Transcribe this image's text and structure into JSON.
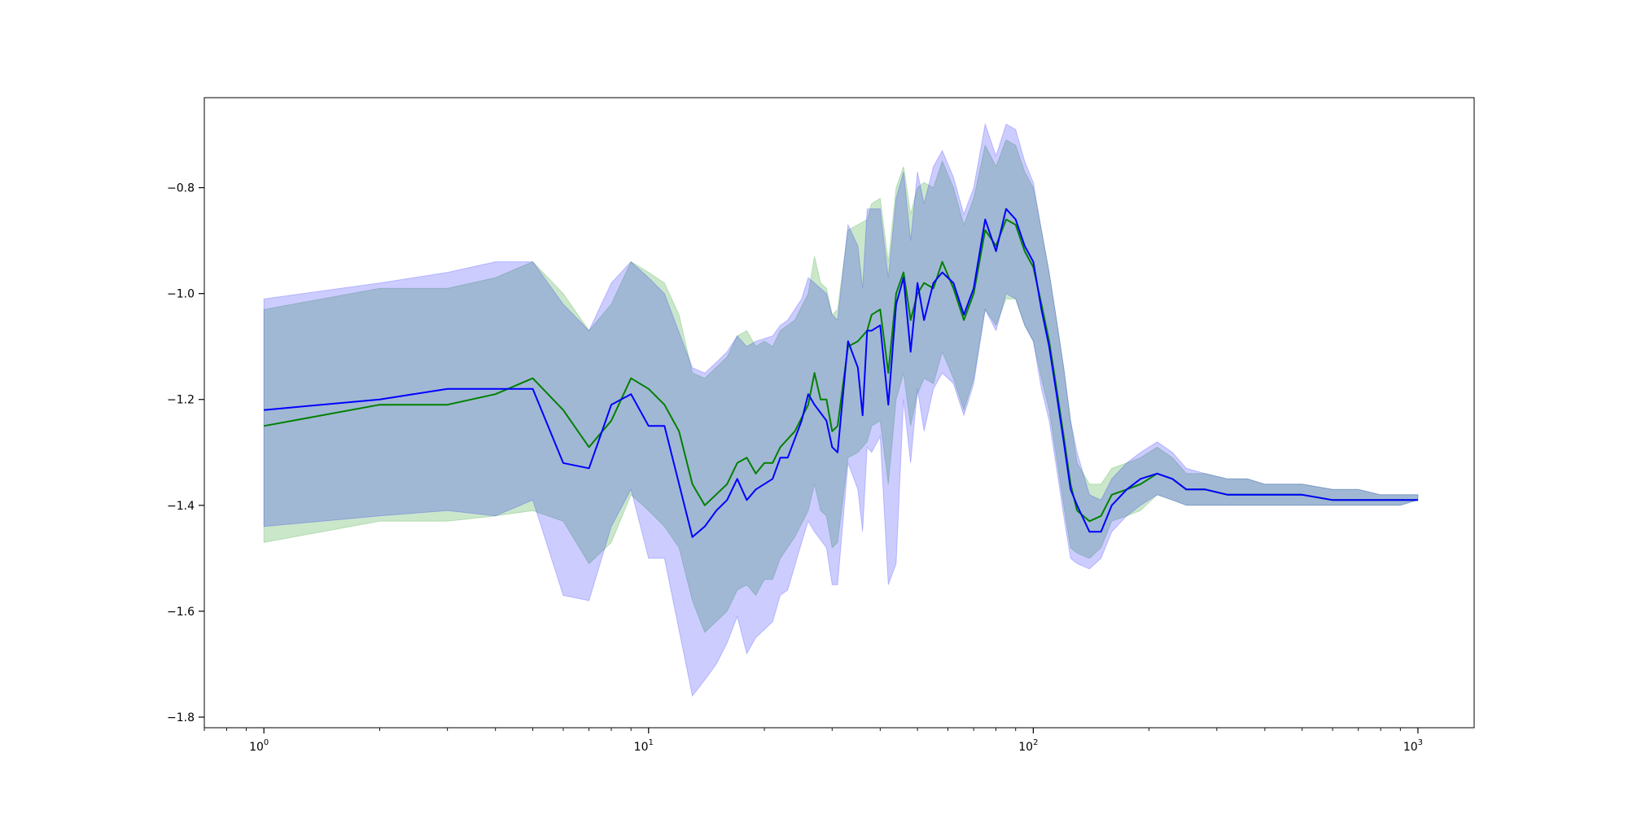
{
  "chart_data": {
    "type": "line",
    "title": "",
    "xlabel": "",
    "ylabel": "",
    "x_scale": "log",
    "xlim": [
      0.7,
      1400
    ],
    "ylim": [
      -1.82,
      -0.63
    ],
    "grid": false,
    "legend": "none",
    "x_ticks": [
      {
        "value": 1,
        "base": "10",
        "exp": "0"
      },
      {
        "value": 10,
        "base": "10",
        "exp": "1"
      },
      {
        "value": 100,
        "base": "10",
        "exp": "2"
      },
      {
        "value": 1000,
        "base": "10",
        "exp": "3"
      }
    ],
    "y_ticks": [
      {
        "value": -0.8,
        "label": "−0.8"
      },
      {
        "value": -1.0,
        "label": "−1.0"
      },
      {
        "value": -1.2,
        "label": "−1.2"
      },
      {
        "value": -1.4,
        "label": "−1.4"
      },
      {
        "value": -1.6,
        "label": "−1.6"
      },
      {
        "value": -1.8,
        "label": "−1.8"
      }
    ],
    "series": [
      {
        "color": "#008000",
        "band_color": "#2ca02c",
        "band_opacity": 0.25,
        "x": [
          1,
          2,
          3,
          4,
          5,
          6,
          7,
          8,
          9,
          10,
          11,
          12,
          13,
          14,
          16,
          17,
          18,
          19,
          20,
          21,
          22,
          24,
          26,
          27,
          28,
          29,
          30,
          31,
          33,
          35,
          37,
          38,
          40,
          42,
          44,
          46,
          48,
          50,
          52,
          55,
          58,
          62,
          66,
          70,
          75,
          80,
          85,
          90,
          95,
          100,
          105,
          110,
          115,
          120,
          125,
          130,
          140,
          150,
          160,
          175,
          190,
          210,
          230,
          250,
          280,
          320,
          360,
          400,
          500,
          600,
          700,
          800,
          900,
          1000
        ],
        "y": [
          -1.25,
          -1.21,
          -1.21,
          -1.19,
          -1.16,
          -1.22,
          -1.29,
          -1.24,
          -1.16,
          -1.18,
          -1.21,
          -1.26,
          -1.36,
          -1.4,
          -1.36,
          -1.32,
          -1.31,
          -1.34,
          -1.32,
          -1.32,
          -1.29,
          -1.26,
          -1.21,
          -1.15,
          -1.2,
          -1.2,
          -1.26,
          -1.25,
          -1.1,
          -1.09,
          -1.07,
          -1.04,
          -1.03,
          -1.15,
          -1.0,
          -0.96,
          -1.05,
          -1.0,
          -0.98,
          -0.99,
          -0.94,
          -0.99,
          -1.05,
          -1.0,
          -0.88,
          -0.91,
          -0.86,
          -0.87,
          -0.92,
          -0.95,
          -1.02,
          -1.09,
          -1.18,
          -1.27,
          -1.36,
          -1.41,
          -1.43,
          -1.42,
          -1.38,
          -1.37,
          -1.36,
          -1.34,
          -1.35,
          -1.37,
          -1.37,
          -1.38,
          -1.38,
          -1.38,
          -1.38,
          -1.39,
          -1.39,
          -1.39,
          -1.39,
          -1.39
        ],
        "lower": [
          -1.47,
          -1.43,
          -1.43,
          -1.42,
          -1.41,
          -1.43,
          -1.51,
          -1.47,
          -1.38,
          -1.41,
          -1.44,
          -1.48,
          -1.58,
          -1.64,
          -1.6,
          -1.56,
          -1.55,
          -1.57,
          -1.54,
          -1.54,
          -1.5,
          -1.46,
          -1.41,
          -1.36,
          -1.41,
          -1.42,
          -1.48,
          -1.47,
          -1.31,
          -1.3,
          -1.28,
          -1.25,
          -1.24,
          -1.36,
          -1.2,
          -1.15,
          -1.25,
          -1.19,
          -1.16,
          -1.17,
          -1.11,
          -1.16,
          -1.22,
          -1.16,
          -1.03,
          -1.06,
          -1.01,
          -1.01,
          -1.06,
          -1.09,
          -1.16,
          -1.22,
          -1.31,
          -1.4,
          -1.48,
          -1.49,
          -1.5,
          -1.48,
          -1.43,
          -1.42,
          -1.41,
          -1.38,
          -1.39,
          -1.4,
          -1.4,
          -1.4,
          -1.4,
          -1.4,
          -1.4,
          -1.4,
          -1.4,
          -1.4,
          -1.4,
          -1.39
        ],
        "upper": [
          -1.03,
          -0.99,
          -0.99,
          -0.97,
          -0.94,
          -1.0,
          -1.07,
          -1.02,
          -0.94,
          -0.96,
          -0.98,
          -1.04,
          -1.15,
          -1.16,
          -1.12,
          -1.08,
          -1.07,
          -1.1,
          -1.09,
          -1.1,
          -1.07,
          -1.05,
          -1.0,
          -0.93,
          -0.98,
          -0.99,
          -1.04,
          -1.03,
          -0.88,
          -0.87,
          -0.86,
          -0.83,
          -0.82,
          -0.94,
          -0.8,
          -0.76,
          -0.85,
          -0.8,
          -0.79,
          -0.8,
          -0.75,
          -0.8,
          -0.87,
          -0.82,
          -0.72,
          -0.76,
          -0.71,
          -0.72,
          -0.77,
          -0.8,
          -0.88,
          -0.96,
          -1.05,
          -1.14,
          -1.24,
          -1.32,
          -1.36,
          -1.36,
          -1.33,
          -1.32,
          -1.31,
          -1.29,
          -1.31,
          -1.34,
          -1.34,
          -1.35,
          -1.35,
          -1.36,
          -1.36,
          -1.37,
          -1.37,
          -1.38,
          -1.38,
          -1.38
        ]
      },
      {
        "color": "#0000ff",
        "band_color": "#0000ff",
        "band_opacity": 0.2,
        "x": [
          1,
          2,
          3,
          4,
          5,
          6,
          7,
          8,
          9,
          10,
          11,
          13,
          14,
          15,
          16,
          17,
          18,
          19,
          21,
          22,
          23,
          25,
          26,
          27,
          29,
          30,
          31,
          33,
          35,
          36,
          37,
          38,
          40,
          42,
          44,
          46,
          48,
          50,
          52,
          55,
          58,
          62,
          66,
          70,
          75,
          80,
          85,
          90,
          95,
          100,
          105,
          110,
          115,
          120,
          125,
          130,
          140,
          150,
          160,
          175,
          190,
          210,
          230,
          250,
          280,
          320,
          360,
          400,
          500,
          600,
          700,
          800,
          900,
          1000
        ],
        "y": [
          -1.22,
          -1.2,
          -1.18,
          -1.18,
          -1.18,
          -1.32,
          -1.33,
          -1.21,
          -1.19,
          -1.25,
          -1.25,
          -1.46,
          -1.44,
          -1.41,
          -1.39,
          -1.35,
          -1.39,
          -1.37,
          -1.35,
          -1.31,
          -1.31,
          -1.24,
          -1.19,
          -1.21,
          -1.24,
          -1.29,
          -1.3,
          -1.09,
          -1.14,
          -1.23,
          -1.07,
          -1.07,
          -1.06,
          -1.21,
          -1.02,
          -0.97,
          -1.11,
          -0.98,
          -1.05,
          -0.98,
          -0.96,
          -0.98,
          -1.04,
          -0.99,
          -0.86,
          -0.92,
          -0.84,
          -0.86,
          -0.91,
          -0.94,
          -1.03,
          -1.1,
          -1.19,
          -1.28,
          -1.37,
          -1.4,
          -1.45,
          -1.45,
          -1.4,
          -1.37,
          -1.35,
          -1.34,
          -1.35,
          -1.37,
          -1.37,
          -1.38,
          -1.38,
          -1.38,
          -1.38,
          -1.39,
          -1.39,
          -1.39,
          -1.39,
          -1.39
        ],
        "lower": [
          -1.44,
          -1.42,
          -1.41,
          -1.42,
          -1.39,
          -1.57,
          -1.58,
          -1.44,
          -1.37,
          -1.5,
          -1.5,
          -1.76,
          -1.73,
          -1.7,
          -1.66,
          -1.61,
          -1.68,
          -1.65,
          -1.62,
          -1.57,
          -1.56,
          -1.47,
          -1.43,
          -1.45,
          -1.48,
          -1.55,
          -1.55,
          -1.32,
          -1.37,
          -1.45,
          -1.29,
          -1.3,
          -1.27,
          -1.55,
          -1.51,
          -1.2,
          -1.32,
          -1.18,
          -1.26,
          -1.18,
          -1.15,
          -1.17,
          -1.23,
          -1.17,
          -1.03,
          -1.07,
          -1.0,
          -1.01,
          -1.06,
          -1.09,
          -1.18,
          -1.24,
          -1.33,
          -1.42,
          -1.5,
          -1.51,
          -1.52,
          -1.5,
          -1.45,
          -1.42,
          -1.4,
          -1.38,
          -1.39,
          -1.4,
          -1.4,
          -1.4,
          -1.4,
          -1.4,
          -1.4,
          -1.4,
          -1.4,
          -1.4,
          -1.4,
          -1.39
        ],
        "upper": [
          -1.01,
          -0.98,
          -0.96,
          -0.94,
          -0.94,
          -1.02,
          -1.07,
          -0.98,
          -0.94,
          -0.97,
          -1.0,
          -1.14,
          -1.15,
          -1.13,
          -1.11,
          -1.08,
          -1.1,
          -1.09,
          -1.08,
          -1.06,
          -1.05,
          -1.01,
          -0.97,
          -0.98,
          -1.0,
          -1.04,
          -1.05,
          -0.87,
          -0.91,
          -0.99,
          -0.84,
          -0.84,
          -0.84,
          -0.97,
          -0.82,
          -0.77,
          -0.9,
          -0.77,
          -0.83,
          -0.76,
          -0.73,
          -0.78,
          -0.85,
          -0.8,
          -0.68,
          -0.74,
          -0.68,
          -0.69,
          -0.75,
          -0.79,
          -0.88,
          -0.96,
          -1.05,
          -1.14,
          -1.24,
          -1.3,
          -1.38,
          -1.39,
          -1.35,
          -1.32,
          -1.3,
          -1.28,
          -1.3,
          -1.33,
          -1.34,
          -1.35,
          -1.35,
          -1.36,
          -1.36,
          -1.37,
          -1.37,
          -1.38,
          -1.38,
          -1.38
        ]
      }
    ]
  }
}
